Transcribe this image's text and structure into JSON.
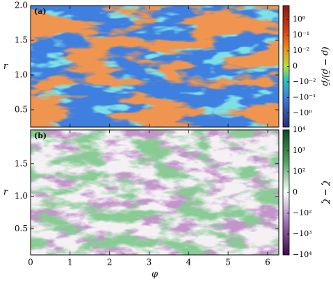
{
  "chart_data": [
    {
      "type": "heatmap",
      "panel_label": "(a)",
      "ylabel": "r",
      "xlim": [
        0,
        6.283
      ],
      "xticks": [
        0,
        1,
        2,
        3,
        4,
        5,
        6
      ],
      "ylim": [
        0.25,
        2.0
      ],
      "yticks": [
        0.5,
        {
          "value": 1.0,
          "label": "1.0"
        },
        1.5,
        {
          "value": 2.0,
          "label": "2.0"
        }
      ],
      "colorbar": {
        "label": "(ρ − ρ̄)/ρ̄",
        "scale": "symlog",
        "linthresh": 0.01,
        "clim": [
          -8,
          8
        ],
        "ticks": [
          {
            "value": 1,
            "label": "10⁰"
          },
          {
            "value": 0.1,
            "label": "10⁻¹"
          },
          {
            "value": 0.01,
            "label": "10⁻²"
          },
          0,
          {
            "value": -0.01,
            "label": "−10⁻²"
          },
          {
            "value": -0.1,
            "label": "−10⁻¹"
          },
          {
            "value": -1,
            "label": "−10⁰"
          }
        ]
      }
    },
    {
      "type": "heatmap",
      "panel_label": "(b)",
      "ylabel": "r",
      "xlabel": "φ",
      "xlim": [
        0,
        6.283
      ],
      "xticks": [
        0,
        1,
        2,
        3,
        4,
        5,
        6
      ],
      "ylim": [
        0.1,
        2.02
      ],
      "yticks": [
        0.5,
        {
          "value": 1.0,
          "label": "1.0"
        },
        1.5
      ],
      "colorbar": {
        "label": "ζ − ζ̄",
        "scale": "symlog",
        "linthresh": 100,
        "clim": [
          -10000,
          10000
        ],
        "ticks": [
          {
            "value": 10000,
            "label": "10⁴"
          },
          {
            "value": 1000,
            "label": "10³"
          },
          {
            "value": 100,
            "label": "10²"
          },
          0,
          {
            "value": -100,
            "label": "−10²"
          },
          {
            "value": -1000,
            "label": "−10³"
          },
          {
            "value": -10000,
            "label": "−10⁴"
          }
        ]
      }
    }
  ]
}
